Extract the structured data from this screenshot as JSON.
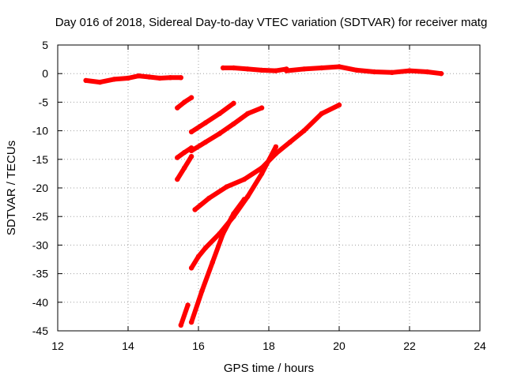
{
  "chart_data": {
    "type": "scatter",
    "title": "Day 016 of 2018, Sidereal Day-to-day VTEC variation (SDTVAR) for receiver matg",
    "xlabel": "GPS time / hours",
    "ylabel": "SDTVAR / TECUs",
    "xlim": [
      12,
      24
    ],
    "ylim": [
      -45,
      5
    ],
    "xticks": [
      12,
      14,
      16,
      18,
      20,
      22,
      24
    ],
    "yticks": [
      5,
      0,
      -5,
      -10,
      -15,
      -20,
      -25,
      -30,
      -35,
      -40,
      -45
    ],
    "grid": true,
    "legend": "none",
    "color": "#ff0000",
    "series": [
      {
        "x": [
          12.8,
          13.2,
          13.6,
          14.0,
          14.3,
          14.6,
          14.9,
          15.2,
          15.5
        ],
        "y": [
          -1.2,
          -1.5,
          -1.0,
          -0.8,
          -0.4,
          -0.6,
          -0.8,
          -0.7,
          -0.7
        ]
      },
      {
        "x": [
          16.7,
          17.0,
          17.4,
          17.8,
          18.2,
          18.5
        ],
        "y": [
          1.0,
          1.0,
          0.8,
          0.6,
          0.5,
          0.8
        ]
      },
      {
        "x": [
          18.5,
          19.0,
          19.5,
          20.0,
          20.5,
          21.0,
          21.5,
          22.0,
          22.5,
          22.9
        ],
        "y": [
          0.5,
          0.8,
          1.0,
          1.2,
          0.6,
          0.3,
          0.2,
          0.5,
          0.3,
          0.0
        ]
      },
      {
        "x": [
          15.4,
          15.6,
          15.8
        ],
        "y": [
          -6.0,
          -5.0,
          -4.2
        ]
      },
      {
        "x": [
          15.4,
          15.6,
          15.8
        ],
        "y": [
          -14.7,
          -13.8,
          -13.0
        ]
      },
      {
        "x": [
          15.4,
          15.6,
          15.8
        ],
        "y": [
          -18.5,
          -16.5,
          -14.5
        ]
      },
      {
        "x": [
          15.8,
          16.2,
          16.6,
          17.0
        ],
        "y": [
          -10.2,
          -8.6,
          -7.0,
          -5.2
        ]
      },
      {
        "x": [
          15.8,
          16.2,
          16.6,
          17.0,
          17.4,
          17.8
        ],
        "y": [
          -13.5,
          -12.0,
          -10.5,
          -8.8,
          -7.0,
          -6.0
        ]
      },
      {
        "x": [
          15.9,
          16.3,
          16.8,
          17.3,
          17.8,
          18.2,
          18.6,
          19.0,
          19.5,
          20.0
        ],
        "y": [
          -23.8,
          -21.8,
          -19.8,
          -18.5,
          -16.5,
          -14.0,
          -12.0,
          -10.0,
          -7.0,
          -5.5
        ]
      },
      {
        "x": [
          15.5,
          15.7
        ],
        "y": [
          -44.0,
          -40.5
        ]
      },
      {
        "x": [
          15.8,
          16.0,
          16.2,
          16.6,
          17.0,
          17.4,
          17.8,
          18.2
        ],
        "y": [
          -34.0,
          -32.0,
          -30.5,
          -28.0,
          -25.0,
          -21.5,
          -17.5,
          -12.8
        ]
      },
      {
        "x": [
          15.8,
          16.1,
          16.4,
          16.7,
          17.0,
          17.3
        ],
        "y": [
          -43.5,
          -38.0,
          -33.0,
          -28.0,
          -24.5,
          -22.0
        ]
      }
    ]
  }
}
